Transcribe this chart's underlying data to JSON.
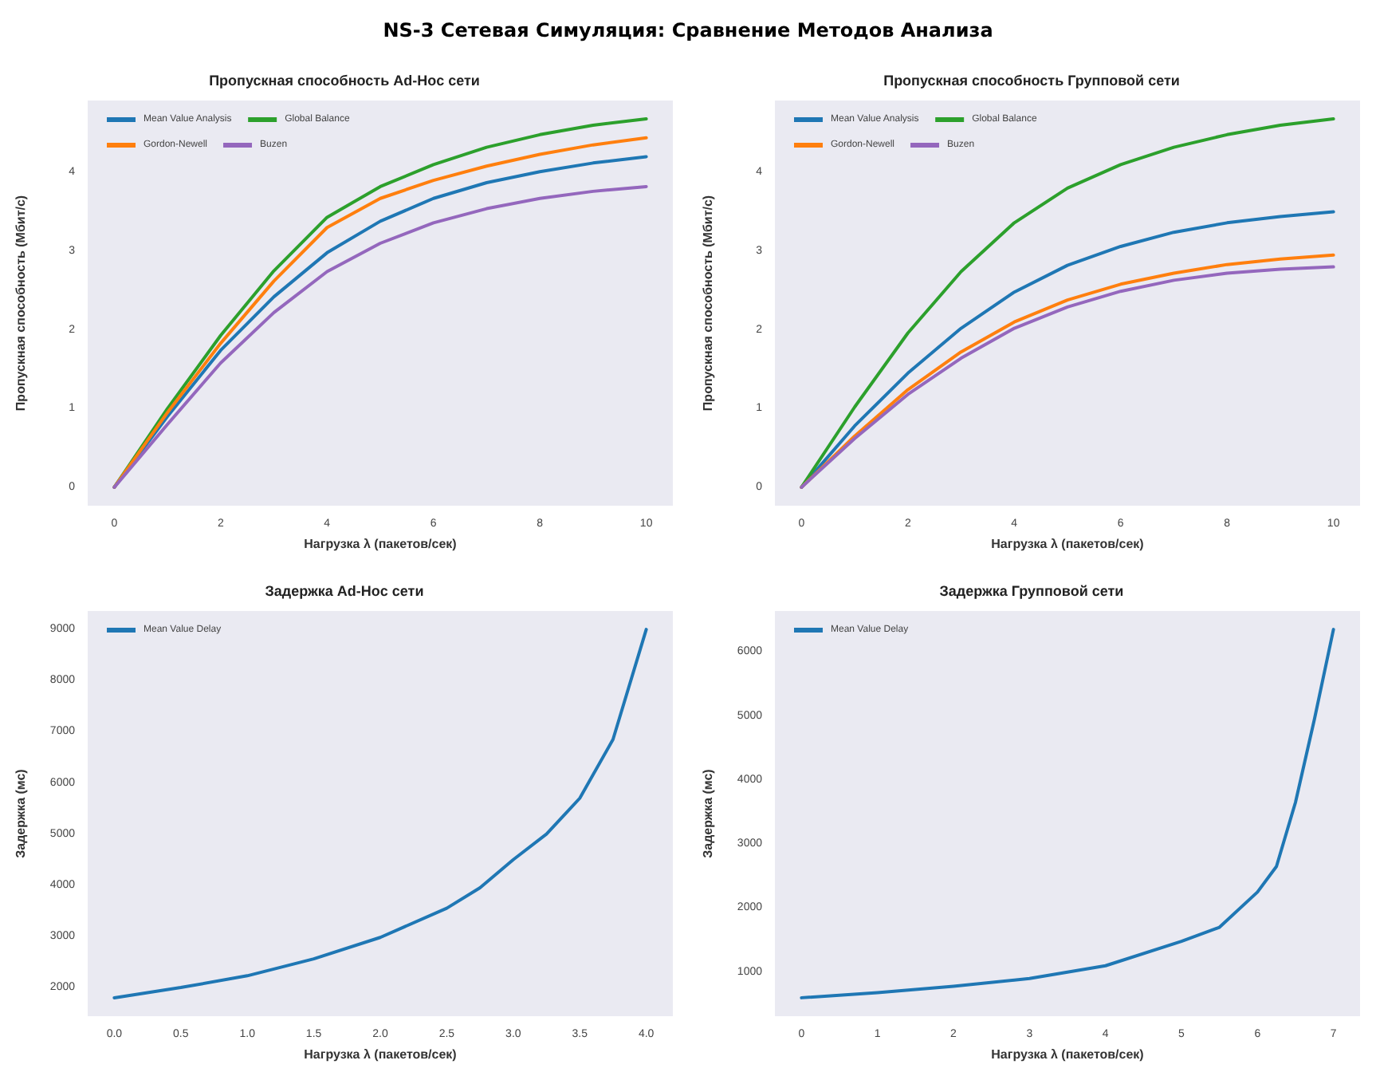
{
  "chart_data": [
    {
      "type": "other",
      "title": "NS-3 Сетевая Симуляция: Сравнение Методов Анализа"
    },
    {
      "type": "line",
      "title": "Пропускная способность Ad-Hoc сети",
      "xlabel": "Нагрузка λ (пакетов/сек)",
      "ylabel": "Пропускная способность (Мбит/с)",
      "x": [
        0,
        1,
        2,
        3,
        4,
        5,
        6,
        7,
        8,
        9,
        10
      ],
      "xlim": [
        -0.5,
        10.5
      ],
      "ylim": [
        -0.234,
        4.914
      ],
      "xticks": [
        0,
        2,
        4,
        6,
        8,
        10
      ],
      "yticks": [
        0,
        1,
        2,
        3,
        4
      ],
      "legend": "top left",
      "grid": false,
      "marker": "none",
      "series": [
        {
          "name": "Mean Value Analysis",
          "color": "#1f77b4",
          "values": [
            0,
            0.9,
            1.74,
            2.42,
            2.98,
            3.38,
            3.67,
            3.87,
            4.01,
            4.12,
            4.2
          ]
        },
        {
          "name": "Global Balance",
          "color": "#2ca02c",
          "values": [
            0,
            1.0,
            1.93,
            2.75,
            3.43,
            3.82,
            4.1,
            4.32,
            4.48,
            4.6,
            4.68
          ]
        },
        {
          "name": "Gordon-Newell",
          "color": "#ff7f0e",
          "values": [
            0,
            0.95,
            1.83,
            2.62,
            3.3,
            3.67,
            3.9,
            4.08,
            4.23,
            4.35,
            4.44
          ]
        },
        {
          "name": "Buzen",
          "color": "#9467bd",
          "values": [
            0,
            0.8,
            1.58,
            2.22,
            2.74,
            3.1,
            3.36,
            3.54,
            3.67,
            3.76,
            3.82
          ]
        }
      ]
    },
    {
      "type": "line",
      "title": "Пропускная способность Групповой сети",
      "xlabel": "Нагрузка λ (пакетов/сек)",
      "ylabel": "Пропускная способность (Мбит/с)",
      "x": [
        0,
        1,
        2,
        3,
        4,
        5,
        6,
        7,
        8,
        9,
        10
      ],
      "xlim": [
        -0.5,
        10.5
      ],
      "ylim": [
        -0.234,
        4.914
      ],
      "xticks": [
        0,
        2,
        4,
        6,
        8,
        10
      ],
      "yticks": [
        0,
        1,
        2,
        3,
        4
      ],
      "legend": "top left",
      "grid": false,
      "marker": "none",
      "series": [
        {
          "name": "Mean Value Analysis",
          "color": "#1f77b4",
          "values": [
            0,
            0.78,
            1.45,
            2.02,
            2.48,
            2.82,
            3.06,
            3.24,
            3.36,
            3.44,
            3.5
          ]
        },
        {
          "name": "Global Balance",
          "color": "#2ca02c",
          "values": [
            0,
            1.02,
            1.96,
            2.74,
            3.36,
            3.8,
            4.1,
            4.32,
            4.48,
            4.6,
            4.68
          ]
        },
        {
          "name": "Gordon-Newell",
          "color": "#ff7f0e",
          "values": [
            0,
            0.65,
            1.24,
            1.72,
            2.1,
            2.38,
            2.58,
            2.72,
            2.83,
            2.9,
            2.95
          ]
        },
        {
          "name": "Buzen",
          "color": "#9467bd",
          "values": [
            0,
            0.62,
            1.18,
            1.64,
            2.02,
            2.29,
            2.49,
            2.63,
            2.72,
            2.77,
            2.8
          ]
        }
      ]
    },
    {
      "type": "line",
      "title": "Задержка Ad-Hoc сети",
      "xlabel": "Нагрузка λ (пакетов/сек)",
      "ylabel": "Задержка (мс)",
      "x": [
        0,
        0.5,
        1,
        1.5,
        2,
        2.5,
        2.75,
        3,
        3.25,
        3.5,
        3.75,
        4
      ],
      "xlim": [
        -0.2,
        4.2
      ],
      "ylim": [
        1440,
        9360
      ],
      "xticks": [
        {
          "value": 0,
          "label": "0.0"
        },
        {
          "value": 0.5,
          "label": "0.5"
        },
        {
          "value": 1,
          "label": "1.0"
        },
        {
          "value": 1.5,
          "label": "1.5"
        },
        {
          "value": 2,
          "label": "2.0"
        },
        {
          "value": 2.5,
          "label": "2.5"
        },
        {
          "value": 3,
          "label": "3.0"
        },
        {
          "value": 3.5,
          "label": "3.5"
        },
        {
          "value": 4,
          "label": "4.0"
        }
      ],
      "yticks": [
        2000,
        3000,
        4000,
        5000,
        6000,
        7000,
        8000,
        9000
      ],
      "legend": "top left",
      "grid": false,
      "marker": "none",
      "series": [
        {
          "name": "Mean Value Delay",
          "color": "#1f77b4",
          "values": [
            1800,
            2000,
            2230,
            2560,
            2980,
            3550,
            3950,
            4500,
            5000,
            5700,
            6850,
            9000
          ]
        }
      ]
    },
    {
      "type": "line",
      "title": "Задержка Групповой сети",
      "xlabel": "Нагрузка λ (пакетов/сек)",
      "ylabel": "Задержка (мс)",
      "x": [
        0,
        1,
        2,
        3,
        4,
        5,
        5.5,
        6,
        6.25,
        6.5,
        6.75,
        7
      ],
      "xlim": [
        -0.35,
        7.35
      ],
      "ylim": [
        312,
        6638
      ],
      "xticks": [
        0,
        1,
        2,
        3,
        4,
        5,
        6,
        7
      ],
      "yticks": [
        1000,
        2000,
        3000,
        4000,
        5000,
        6000
      ],
      "legend": "top left",
      "grid": false,
      "marker": "none",
      "series": [
        {
          "name": "Mean Value Delay",
          "color": "#1f77b4",
          "values": [
            600,
            680,
            780,
            900,
            1100,
            1480,
            1700,
            2250,
            2650,
            3650,
            4950,
            6350
          ]
        }
      ]
    }
  ]
}
